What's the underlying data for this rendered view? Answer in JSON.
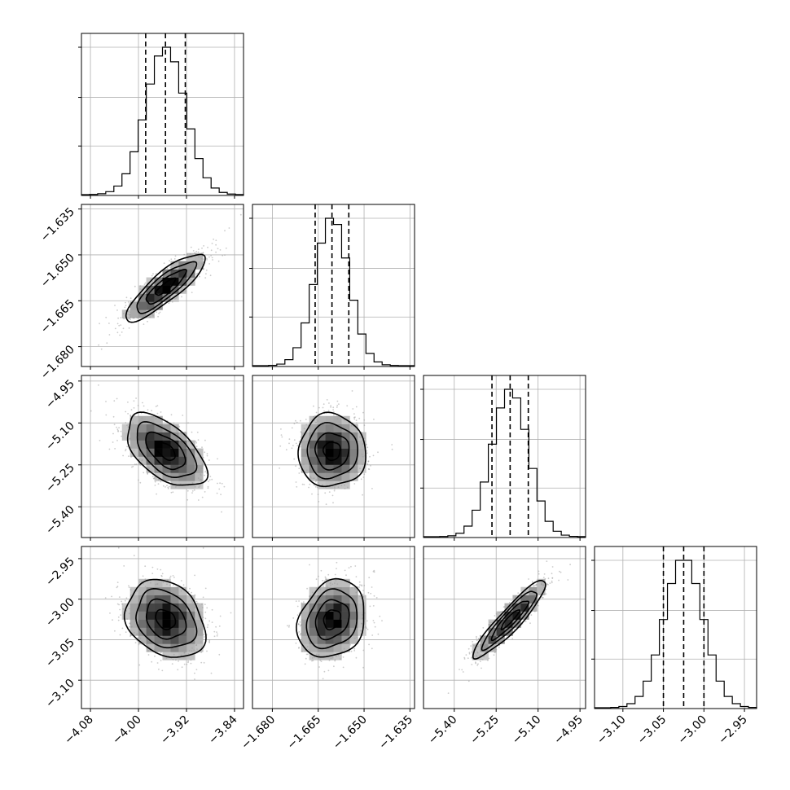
{
  "chart_data": {
    "type": "corner",
    "parameters": [
      {
        "mean": -3.955,
        "sd": 0.033,
        "range": [
          -4.095,
          -3.825
        ],
        "ticks": [
          -4.08,
          -4.0,
          -3.92,
          -3.84
        ],
        "tick_labels": [
          "−4.08",
          "−4.00",
          "−3.92",
          "−3.84"
        ],
        "quantiles": [
          -3.988,
          -3.955,
          -3.922
        ]
      },
      {
        "mean": -1.6605,
        "sd": 0.0055,
        "range": [
          -1.6865,
          -1.6335
        ],
        "ticks": [
          -1.68,
          -1.665,
          -1.65,
          -1.635
        ],
        "tick_labels": [
          "−1.680",
          "−1.665",
          "−1.650",
          "−1.635"
        ],
        "quantiles": [
          -1.666,
          -1.6605,
          -1.655
        ]
      },
      {
        "mean": -5.2,
        "sd": 0.065,
        "range": [
          -5.51,
          -4.93
        ],
        "ticks": [
          -5.4,
          -5.25,
          -5.1,
          -4.95
        ],
        "tick_labels": [
          "−5.40",
          "−5.25",
          "−5.10",
          "−4.95"
        ],
        "quantiles": [
          -5.265,
          -5.2,
          -5.135
        ]
      },
      {
        "mean": -3.025,
        "sd": 0.024,
        "range": [
          -3.135,
          -2.935
        ],
        "ticks": [
          -3.1,
          -3.05,
          -3.0,
          -2.95
        ],
        "tick_labels": [
          "−3.10",
          "−3.05",
          "−3.00",
          "−2.95"
        ],
        "quantiles": [
          -3.05,
          -3.025,
          -3.0
        ]
      }
    ],
    "correlations": [
      [
        1.0,
        0.85,
        -0.55,
        -0.25
      ],
      [
        0.85,
        1.0,
        0.0,
        0.2
      ],
      [
        -0.55,
        0.0,
        1.0,
        0.92
      ],
      [
        -0.25,
        0.2,
        0.92,
        1.0
      ]
    ],
    "histogram_bins": 20,
    "contour_levels_sigma": [
      0.5,
      1.0,
      1.5,
      2.0
    ],
    "grid": true,
    "xlabel": "",
    "ylabel": "",
    "title": ""
  }
}
